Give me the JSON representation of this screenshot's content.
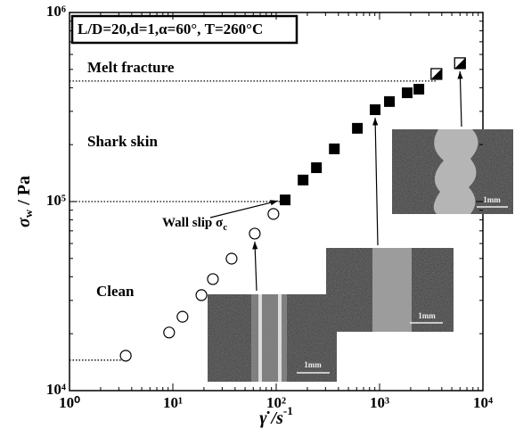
{
  "chart_data": {
    "type": "scatter",
    "condition": "L/D=20,d=1,α=60°, T=260°C",
    "x_label": {
      "text": "γ̇ /s",
      "superscript": "-1"
    },
    "y_label": {
      "text": "σ",
      "subscript": "w",
      "suffix": " / Pa"
    },
    "log_x": true,
    "log_y": true,
    "xlim": [
      1,
      10000
    ],
    "ylim": [
      10000,
      1000000
    ],
    "xticks": [
      {
        "value": 1,
        "label": "10⁰"
      },
      {
        "value": 10,
        "label": "10¹"
      },
      {
        "value": 100,
        "label": "10²"
      },
      {
        "value": 1000,
        "label": "10³"
      },
      {
        "value": 10000,
        "label": "10⁴"
      }
    ],
    "yticks": [
      {
        "value": 10000,
        "label": "10⁴"
      },
      {
        "value": 100000,
        "label": "10⁵"
      },
      {
        "value": 1000000,
        "label": "10⁶"
      }
    ],
    "series": [
      {
        "marker": "open-circle",
        "color": "#000000",
        "x": [
          3.5,
          9.2,
          12.4,
          18.9,
          24.4,
          37,
          62,
          94
        ],
        "values": [
          15300,
          20300,
          24600,
          32000,
          38900,
          49900,
          67700,
          86000
        ]
      },
      {
        "marker": "filled-square",
        "color": "#000000",
        "x": [
          122,
          182,
          245,
          365,
          610,
          906,
          1245,
          1850,
          2400
        ],
        "values": [
          102000,
          130000,
          151000,
          190000,
          244000,
          306000,
          338000,
          376000,
          393000
        ]
      },
      {
        "marker": "half-square",
        "color": "#000000",
        "x": [
          3550,
          6000
        ],
        "values": [
          473000,
          539000
        ]
      }
    ],
    "hlines": [
      {
        "y": 434000,
        "x_end": 3550
      },
      {
        "y": 100000,
        "x_end": 122
      },
      {
        "y": 14500,
        "x_end": 3.5
      }
    ],
    "regions": [
      "Melt fracture",
      "Shark skin",
      "Clean"
    ],
    "wall_slip": {
      "text": "Wall slip σ",
      "subscript": "c"
    },
    "insets": [
      {
        "scale": "1mm"
      },
      {
        "scale": "1mm"
      },
      {
        "scale": "1mm"
      }
    ]
  }
}
